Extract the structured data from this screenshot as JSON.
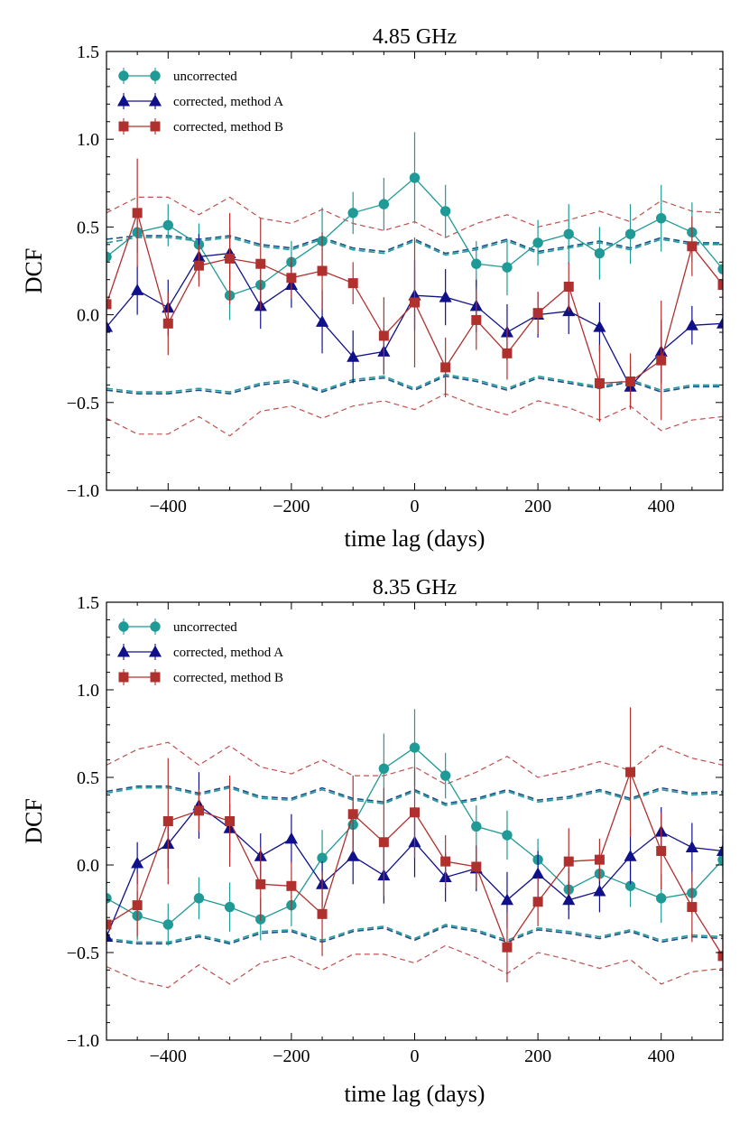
{
  "chart_data": [
    {
      "type": "line",
      "title": "4.85 GHz",
      "xlabel": "time lag (days)",
      "ylabel": "DCF",
      "xlim": [
        -500,
        500
      ],
      "ylim": [
        -1.0,
        1.5
      ],
      "xticks": [
        -400,
        -200,
        0,
        200,
        400
      ],
      "xtick_labels": [
        "−400",
        "−200",
        "0",
        "200",
        "400"
      ],
      "yticks": [
        -1.0,
        -0.5,
        0.0,
        0.5,
        1.0,
        1.5
      ],
      "ytick_labels": [
        "−1.0",
        "−0.5",
        "0.0",
        "0.5",
        "1.0",
        "1.5"
      ],
      "legend_position": "top-left",
      "x": [
        -500,
        -450,
        -400,
        -350,
        -300,
        -250,
        -200,
        -150,
        -100,
        -50,
        0,
        50,
        100,
        150,
        200,
        250,
        300,
        350,
        400,
        450,
        500
      ],
      "series": [
        {
          "name": "uncorrected",
          "color": "#1f9a96",
          "marker": "circle",
          "values": [
            0.33,
            0.47,
            0.51,
            0.4,
            0.11,
            0.17,
            0.3,
            0.42,
            0.58,
            0.63,
            0.78,
            0.59,
            0.29,
            0.27,
            0.41,
            0.46,
            0.35,
            0.46,
            0.55,
            0.47,
            0.26
          ],
          "errors": [
            0.12,
            0.12,
            0.12,
            0.12,
            0.14,
            0.14,
            0.12,
            0.19,
            0.12,
            0.15,
            0.26,
            0.15,
            0.13,
            0.16,
            0.13,
            0.17,
            0.15,
            0.17,
            0.19,
            0.17,
            0.12
          ]
        },
        {
          "name": "corrected, method A",
          "color": "#10108a",
          "marker": "triangle",
          "values": [
            -0.07,
            0.14,
            0.04,
            0.33,
            0.35,
            0.05,
            0.17,
            -0.04,
            -0.24,
            -0.21,
            0.11,
            0.1,
            0.05,
            -0.1,
            0.0,
            0.02,
            -0.07,
            -0.41,
            -0.21,
            -0.06,
            -0.05
          ],
          "errors": [
            0.12,
            0.14,
            0.16,
            0.13,
            0.15,
            0.13,
            0.13,
            0.18,
            0.15,
            0.13,
            0.2,
            0.16,
            0.15,
            0.16,
            0.13,
            0.13,
            0.14,
            0.12,
            0.18,
            0.11,
            0.09
          ]
        },
        {
          "name": "corrected, method B",
          "color": "#b0302e",
          "marker": "square",
          "values": [
            0.06,
            0.58,
            -0.05,
            0.28,
            0.32,
            0.29,
            0.21,
            0.25,
            0.18,
            -0.12,
            0.07,
            -0.3,
            -0.03,
            -0.22,
            0.01,
            0.16,
            -0.39,
            -0.38,
            -0.26,
            0.39,
            0.17
          ],
          "errors": [
            0.14,
            0.31,
            0.18,
            0.12,
            0.26,
            0.26,
            0.12,
            0.22,
            0.12,
            0.22,
            0.37,
            0.17,
            0.17,
            0.15,
            0.12,
            0.14,
            0.22,
            0.16,
            0.34,
            0.17,
            0.12
          ]
        }
      ],
      "significance_lines": [
        {
          "name": "corrected-upper",
          "color": "#1a4e8c",
          "style": "dashed",
          "values": [
            0.43,
            0.45,
            0.45,
            0.43,
            0.45,
            0.4,
            0.38,
            0.44,
            0.38,
            0.36,
            0.43,
            0.35,
            0.38,
            0.43,
            0.36,
            0.39,
            0.42,
            0.38,
            0.44,
            0.41,
            0.41
          ]
        },
        {
          "name": "uncorrected-upper",
          "color": "#1f9a96",
          "style": "dashed",
          "values": [
            0.41,
            0.44,
            0.44,
            0.42,
            0.44,
            0.39,
            0.37,
            0.43,
            0.37,
            0.35,
            0.42,
            0.34,
            0.37,
            0.42,
            0.35,
            0.38,
            0.41,
            0.37,
            0.43,
            0.4,
            0.4
          ]
        },
        {
          "name": "corrected-lower",
          "color": "#1a4e8c",
          "style": "dashed",
          "values": [
            -0.43,
            -0.45,
            -0.45,
            -0.43,
            -0.45,
            -0.4,
            -0.38,
            -0.44,
            -0.38,
            -0.36,
            -0.43,
            -0.35,
            -0.38,
            -0.43,
            -0.36,
            -0.39,
            -0.42,
            -0.38,
            -0.44,
            -0.41,
            -0.41
          ]
        },
        {
          "name": "uncorrected-lower",
          "color": "#1f9a96",
          "style": "dashed",
          "values": [
            -0.42,
            -0.44,
            -0.44,
            -0.42,
            -0.44,
            -0.39,
            -0.37,
            -0.43,
            -0.37,
            -0.35,
            -0.42,
            -0.34,
            -0.37,
            -0.42,
            -0.35,
            -0.38,
            -0.41,
            -0.37,
            -0.43,
            -0.4,
            -0.4
          ]
        },
        {
          "name": "method-B-upper",
          "color": "#c0504d",
          "style": "dashed-thin",
          "values": [
            0.58,
            0.67,
            0.67,
            0.57,
            0.67,
            0.55,
            0.52,
            0.6,
            0.52,
            0.48,
            0.53,
            0.44,
            0.52,
            0.57,
            0.5,
            0.54,
            0.59,
            0.53,
            0.65,
            0.59,
            0.58
          ]
        },
        {
          "name": "method-B-lower",
          "color": "#c0504d",
          "style": "dashed-thin",
          "values": [
            -0.59,
            -0.68,
            -0.68,
            -0.58,
            -0.69,
            -0.55,
            -0.52,
            -0.59,
            -0.52,
            -0.49,
            -0.54,
            -0.45,
            -0.52,
            -0.57,
            -0.49,
            -0.53,
            -0.6,
            -0.52,
            -0.66,
            -0.6,
            -0.58
          ]
        }
      ]
    },
    {
      "type": "line",
      "title": "8.35 GHz",
      "xlabel": "time lag (days)",
      "ylabel": "DCF",
      "xlim": [
        -500,
        500
      ],
      "ylim": [
        -1.0,
        1.5
      ],
      "xticks": [
        -400,
        -200,
        0,
        200,
        400
      ],
      "xtick_labels": [
        "−400",
        "−200",
        "0",
        "200",
        "400"
      ],
      "yticks": [
        -1.0,
        -0.5,
        0.0,
        0.5,
        1.0,
        1.5
      ],
      "ytick_labels": [
        "−1.0",
        "−0.5",
        "0.0",
        "0.5",
        "1.0",
        "1.5"
      ],
      "legend_position": "top-left",
      "x": [
        -500,
        -450,
        -400,
        -350,
        -300,
        -250,
        -200,
        -150,
        -100,
        -50,
        0,
        50,
        100,
        150,
        200,
        250,
        300,
        350,
        400,
        450,
        500
      ],
      "series": [
        {
          "name": "uncorrected",
          "color": "#1f9a96",
          "marker": "circle",
          "values": [
            -0.19,
            -0.29,
            -0.34,
            -0.19,
            -0.24,
            -0.31,
            -0.23,
            0.04,
            0.23,
            0.55,
            0.67,
            0.51,
            0.22,
            0.17,
            0.03,
            -0.14,
            -0.05,
            -0.12,
            -0.19,
            -0.16,
            0.03
          ],
          "errors": [
            0.12,
            0.14,
            0.12,
            0.12,
            0.14,
            0.12,
            0.12,
            0.16,
            0.13,
            0.2,
            0.22,
            0.13,
            0.12,
            0.14,
            0.12,
            0.12,
            0.12,
            0.12,
            0.14,
            0.12,
            0.1
          ]
        },
        {
          "name": "corrected, method A",
          "color": "#10108a",
          "marker": "triangle",
          "values": [
            -0.41,
            0.01,
            0.12,
            0.34,
            0.21,
            0.05,
            0.15,
            -0.11,
            0.05,
            -0.06,
            0.13,
            -0.07,
            -0.02,
            -0.2,
            -0.05,
            -0.2,
            -0.15,
            0.05,
            0.19,
            0.1,
            0.08
          ],
          "errors": [
            0.1,
            0.12,
            0.14,
            0.19,
            0.14,
            0.13,
            0.14,
            0.13,
            0.16,
            0.16,
            0.2,
            0.14,
            0.13,
            0.16,
            0.13,
            0.11,
            0.12,
            0.16,
            0.14,
            0.14,
            0.09
          ]
        },
        {
          "name": "corrected, method B",
          "color": "#b0302e",
          "marker": "square",
          "values": [
            -0.34,
            -0.23,
            0.25,
            0.31,
            0.25,
            -0.11,
            -0.12,
            -0.28,
            0.29,
            0.13,
            0.3,
            0.02,
            -0.01,
            -0.47,
            -0.21,
            0.02,
            0.03,
            0.53,
            0.08,
            -0.24,
            -0.52
          ],
          "errors": [
            0.12,
            0.18,
            0.36,
            0.12,
            0.26,
            0.21,
            0.14,
            0.24,
            0.22,
            0.31,
            0.26,
            0.15,
            0.12,
            0.2,
            0.14,
            0.19,
            0.12,
            0.37,
            0.22,
            0.2,
            0.12
          ]
        }
      ],
      "significance_lines": [
        {
          "name": "corrected-upper",
          "color": "#1a4e8c",
          "style": "dashed",
          "values": [
            0.42,
            0.45,
            0.45,
            0.41,
            0.45,
            0.39,
            0.38,
            0.44,
            0.38,
            0.36,
            0.43,
            0.35,
            0.38,
            0.43,
            0.37,
            0.39,
            0.43,
            0.38,
            0.44,
            0.41,
            0.42
          ]
        },
        {
          "name": "uncorrected-upper",
          "color": "#1f9a96",
          "style": "dashed",
          "values": [
            0.41,
            0.44,
            0.44,
            0.4,
            0.44,
            0.38,
            0.37,
            0.43,
            0.37,
            0.35,
            0.42,
            0.34,
            0.37,
            0.42,
            0.36,
            0.38,
            0.42,
            0.37,
            0.43,
            0.4,
            0.41
          ]
        },
        {
          "name": "corrected-lower",
          "color": "#1a4e8c",
          "style": "dashed",
          "values": [
            -0.43,
            -0.45,
            -0.45,
            -0.41,
            -0.45,
            -0.39,
            -0.38,
            -0.44,
            -0.38,
            -0.36,
            -0.43,
            -0.35,
            -0.38,
            -0.44,
            -0.37,
            -0.39,
            -0.42,
            -0.38,
            -0.44,
            -0.41,
            -0.42
          ]
        },
        {
          "name": "uncorrected-lower",
          "color": "#1f9a96",
          "style": "dashed",
          "values": [
            -0.42,
            -0.44,
            -0.44,
            -0.4,
            -0.44,
            -0.38,
            -0.37,
            -0.43,
            -0.37,
            -0.35,
            -0.42,
            -0.34,
            -0.37,
            -0.43,
            -0.36,
            -0.38,
            -0.41,
            -0.37,
            -0.43,
            -0.4,
            -0.41
          ]
        },
        {
          "name": "method-B-upper",
          "color": "#c0504d",
          "style": "dashed-thin",
          "values": [
            0.57,
            0.66,
            0.7,
            0.57,
            0.68,
            0.56,
            0.52,
            0.6,
            0.51,
            0.51,
            0.56,
            0.46,
            0.53,
            0.62,
            0.5,
            0.54,
            0.59,
            0.54,
            0.68,
            0.61,
            0.57
          ]
        },
        {
          "name": "method-B-lower",
          "color": "#c0504d",
          "style": "dashed-thin",
          "values": [
            -0.58,
            -0.66,
            -0.7,
            -0.57,
            -0.68,
            -0.56,
            -0.52,
            -0.6,
            -0.51,
            -0.51,
            -0.56,
            -0.46,
            -0.53,
            -0.62,
            -0.5,
            -0.54,
            -0.59,
            -0.54,
            -0.68,
            -0.61,
            -0.59
          ]
        }
      ]
    }
  ]
}
